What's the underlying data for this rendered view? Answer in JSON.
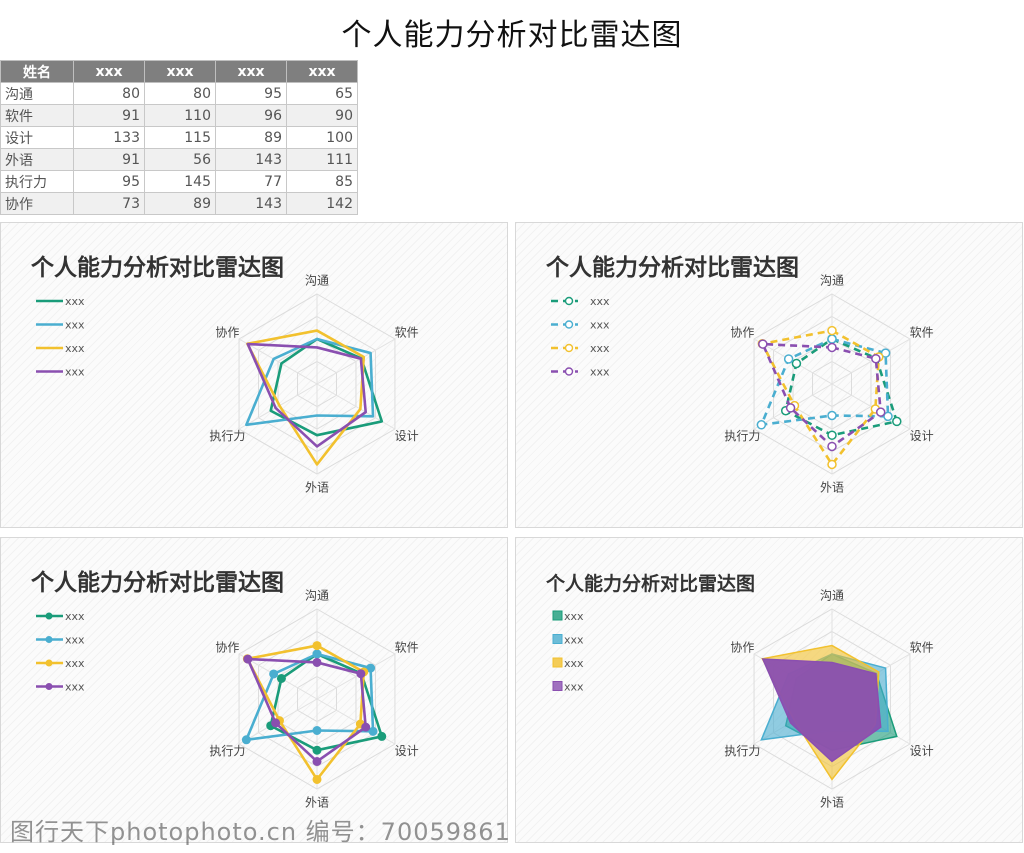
{
  "page": {
    "title": "个人能力分析对比雷达图",
    "watermark": "图行天下photophoto.cn 编号：70059861"
  },
  "table": {
    "headers": [
      "姓名",
      "xxx",
      "xxx",
      "xxx",
      "xxx"
    ],
    "rows": [
      {
        "label": "沟通",
        "values": [
          80,
          80,
          95,
          65
        ]
      },
      {
        "label": "软件",
        "values": [
          91,
          110,
          96,
          90
        ]
      },
      {
        "label": "设计",
        "values": [
          133,
          115,
          89,
          100
        ]
      },
      {
        "label": "外语",
        "values": [
          91,
          56,
          143,
          111
        ]
      },
      {
        "label": "执行力",
        "values": [
          95,
          145,
          77,
          85
        ]
      },
      {
        "label": "协作",
        "values": [
          73,
          89,
          143,
          142
        ]
      }
    ]
  },
  "colors": {
    "series": [
      "#1a9c7a",
      "#4aaed0",
      "#f2c12e",
      "#8a4fb0"
    ]
  },
  "chart_data": [
    {
      "type": "radar",
      "style": "line",
      "title": "个人能力分析对比雷达图",
      "axes": [
        "沟通",
        "软件",
        "设计",
        "外语",
        "执行力",
        "协作"
      ],
      "series": [
        {
          "name": "xxx",
          "values": [
            80,
            91,
            133,
            91,
            95,
            73
          ]
        },
        {
          "name": "xxx",
          "values": [
            80,
            110,
            115,
            56,
            145,
            89
          ]
        },
        {
          "name": "xxx",
          "values": [
            95,
            96,
            89,
            143,
            77,
            143
          ]
        },
        {
          "name": "xxx",
          "values": [
            65,
            90,
            100,
            111,
            85,
            142
          ]
        }
      ],
      "legend": "left"
    },
    {
      "type": "radar",
      "style": "dashed-line-open-markers",
      "title": "个人能力分析对比雷达图",
      "axes": [
        "沟通",
        "软件",
        "设计",
        "外语",
        "执行力",
        "协作"
      ],
      "series": [
        {
          "name": "xxx",
          "values": [
            80,
            91,
            133,
            91,
            95,
            73
          ]
        },
        {
          "name": "xxx",
          "values": [
            80,
            110,
            115,
            56,
            145,
            89
          ]
        },
        {
          "name": "xxx",
          "values": [
            95,
            96,
            89,
            143,
            77,
            143
          ]
        },
        {
          "name": "xxx",
          "values": [
            65,
            90,
            100,
            111,
            85,
            142
          ]
        }
      ],
      "legend": "left"
    },
    {
      "type": "radar",
      "style": "line-markers",
      "title": "个人能力分析对比雷达图",
      "axes": [
        "沟通",
        "软件",
        "设计",
        "外语",
        "执行力",
        "协作"
      ],
      "series": [
        {
          "name": "xxx",
          "values": [
            80,
            91,
            133,
            91,
            95,
            73
          ]
        },
        {
          "name": "xxx",
          "values": [
            80,
            110,
            115,
            56,
            145,
            89
          ]
        },
        {
          "name": "xxx",
          "values": [
            95,
            96,
            89,
            143,
            77,
            143
          ]
        },
        {
          "name": "xxx",
          "values": [
            65,
            90,
            100,
            111,
            85,
            142
          ]
        }
      ],
      "legend": "left"
    },
    {
      "type": "radar",
      "style": "filled",
      "title": "个人能力分析对比雷达图",
      "axes": [
        "沟通",
        "软件",
        "设计",
        "外语",
        "执行力",
        "协作"
      ],
      "series": [
        {
          "name": "xxx",
          "values": [
            80,
            91,
            133,
            91,
            95,
            73
          ]
        },
        {
          "name": "xxx",
          "values": [
            80,
            110,
            115,
            56,
            145,
            89
          ]
        },
        {
          "name": "xxx",
          "values": [
            95,
            96,
            89,
            143,
            77,
            143
          ]
        },
        {
          "name": "xxx",
          "values": [
            65,
            90,
            100,
            111,
            85,
            142
          ]
        }
      ],
      "legend": "left"
    }
  ]
}
